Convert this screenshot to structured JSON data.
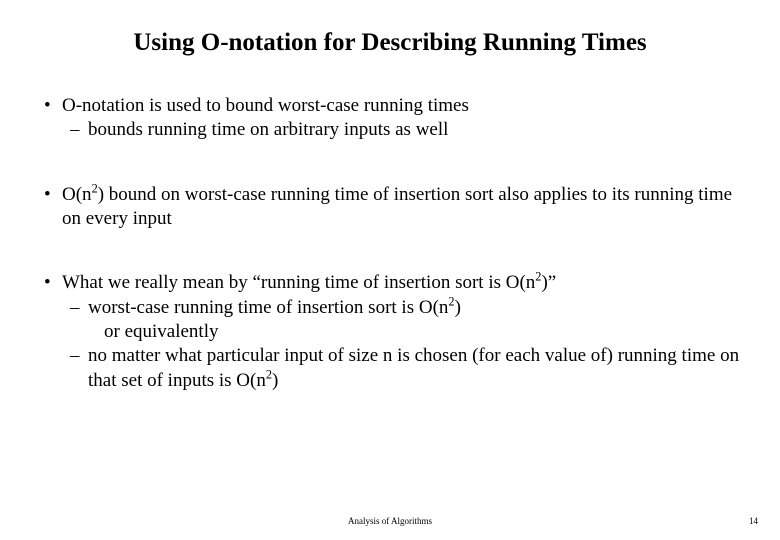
{
  "title": "Using O-notation for Describing Running Times",
  "bullets": {
    "g1_b1": "O-notation is used to bound worst-case running times",
    "g1_b2": "bounds running time on arbitrary inputs as well",
    "g2_b1_pre": "O(n",
    "g2_b1_sup": "2",
    "g2_b1_post": ") bound on worst-case running time of insertion sort also applies to its running time on every input",
    "g3_b1_pre": "What we really mean by “running time of insertion sort is O(n",
    "g3_b1_sup": "2",
    "g3_b1_post": ")”",
    "g3_b2a_pre": "worst-case running time of insertion sort is O(n",
    "g3_b2a_sup": "2",
    "g3_b2a_post": ")",
    "g3_b3": "or equivalently",
    "g3_b2b_pre": "no matter what particular input of size n is chosen (for each value of) running time on that set of inputs is O(n",
    "g3_b2b_sup": "2",
    "g3_b2b_post": ")"
  },
  "footer": {
    "center": "Analysis of Algorithms",
    "page": "14"
  },
  "style": {
    "background_color": "#ffffff",
    "text_color": "#000000",
    "title_fontsize": 25,
    "body_fontsize": 19,
    "footer_fontsize": 9,
    "font_family": "Times New Roman"
  }
}
